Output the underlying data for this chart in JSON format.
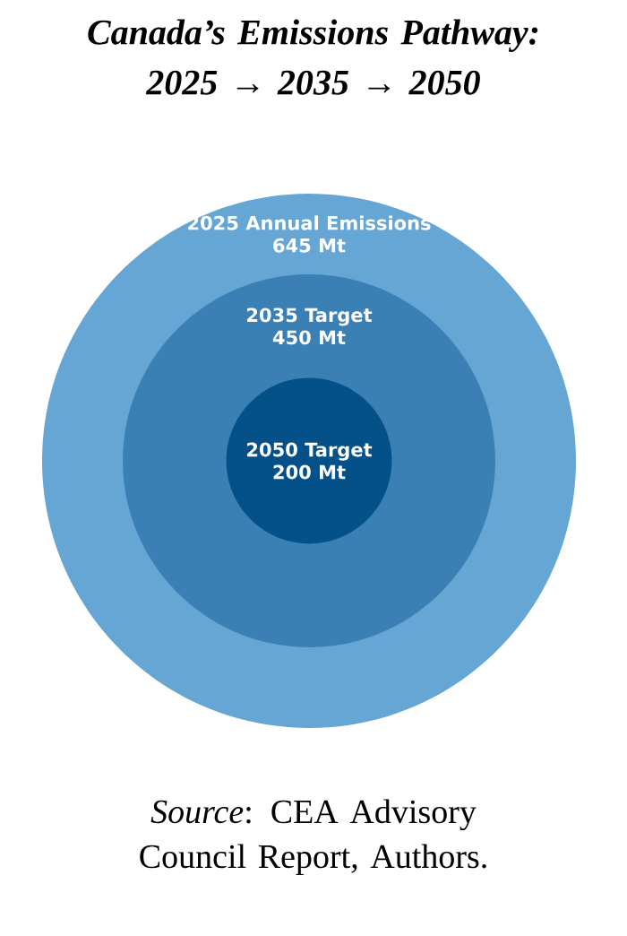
{
  "chart_data": {
    "type": "other",
    "title": "Canada’s Emissions Pathway: 2025 → 2035 → 2050",
    "categories": [
      "2025 Annual Emissions",
      "2035 Target",
      "2050 Target"
    ],
    "values": [
      645,
      450,
      200
    ],
    "value_labels": [
      "645 Mt",
      "450 Mt",
      "200 Mt"
    ],
    "colors": [
      "#66a6d4",
      "#3a80b4",
      "#04518a"
    ],
    "annotations": [
      "*Source*: CEA Advisory Council Report, Authors."
    ]
  }
}
